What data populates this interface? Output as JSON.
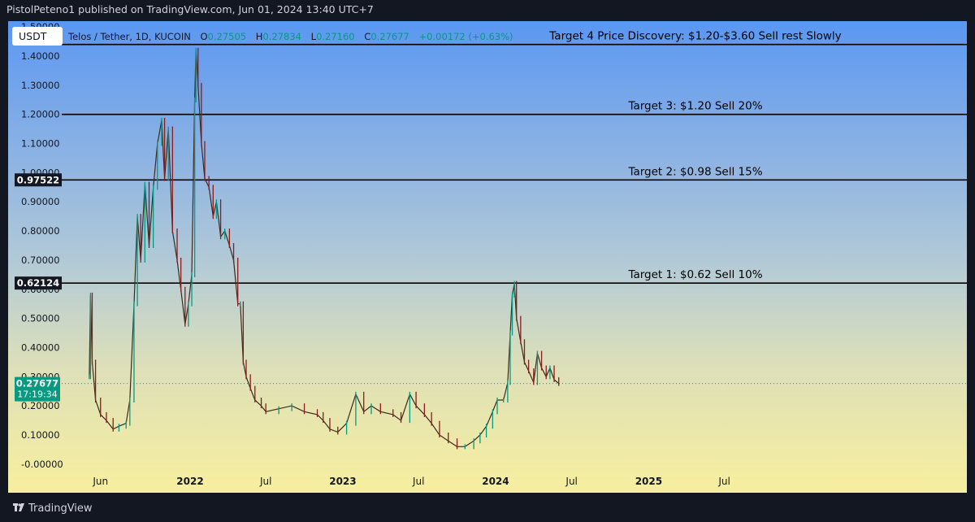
{
  "publisher_line": "PistolPeteno1 published on TradingView.com, Jun 01, 2024 13:40 UTC+7",
  "symbol_button": "USDT",
  "legend": {
    "title": "Telos / Tether, 1D, KUCOIN",
    "o_label": "O",
    "o": "0.27505",
    "h_label": "H",
    "h": "0.27834",
    "l_label": "L",
    "l": "0.27160",
    "c_label": "C",
    "c": "0.27677",
    "change": "+0.00172 (+0.63%)"
  },
  "footer": {
    "brand": "TradingView"
  },
  "colors": {
    "up": "#089981",
    "down": "#8a1c1c",
    "bg_top": "#5a97f2",
    "bg_bottom": "#f7ef9e",
    "price_badge": "#089981"
  },
  "chart_data": {
    "type": "line",
    "title": "Telos / Tether, 1D, KUCOIN",
    "xlabel": "",
    "ylabel": "",
    "ylim": [
      -0.02,
      1.52
    ],
    "y_ticks": [
      "1.50000",
      "1.40000",
      "1.30000",
      "1.20000",
      "1.10000",
      "1.00000",
      "0.90000",
      "0.80000",
      "0.70000",
      "0.60000",
      "0.50000",
      "0.40000",
      "0.30000",
      "0.20000",
      "0.10000",
      "-0.00000"
    ],
    "x_ticks": [
      {
        "label": "Jun",
        "date": "2021-06-01",
        "bold": false
      },
      {
        "label": "2022",
        "date": "2022-01-01",
        "bold": true
      },
      {
        "label": "Jul",
        "date": "2022-07-01",
        "bold": false
      },
      {
        "label": "2023",
        "date": "2023-01-01",
        "bold": true
      },
      {
        "label": "Jul",
        "date": "2023-07-01",
        "bold": false
      },
      {
        "label": "2024",
        "date": "2024-01-01",
        "bold": true
      },
      {
        "label": "Jul",
        "date": "2024-07-01",
        "bold": false
      },
      {
        "label": "2025",
        "date": "2025-01-01",
        "bold": true
      },
      {
        "label": "Jul",
        "date": "2025-07-01",
        "bold": false
      }
    ],
    "series": [
      {
        "points": [
          [
            "2021-05-05",
            0.3
          ],
          [
            "2021-05-08",
            0.58
          ],
          [
            "2021-05-12",
            0.35
          ],
          [
            "2021-05-20",
            0.22
          ],
          [
            "2021-06-01",
            0.17
          ],
          [
            "2021-06-15",
            0.15
          ],
          [
            "2021-07-01",
            0.12
          ],
          [
            "2021-07-15",
            0.13
          ],
          [
            "2021-08-01",
            0.14
          ],
          [
            "2021-08-10",
            0.22
          ],
          [
            "2021-08-20",
            0.55
          ],
          [
            "2021-08-28",
            0.85
          ],
          [
            "2021-09-05",
            0.7
          ],
          [
            "2021-09-15",
            0.96
          ],
          [
            "2021-09-25",
            0.75
          ],
          [
            "2021-10-05",
            0.95
          ],
          [
            "2021-10-15",
            1.1
          ],
          [
            "2021-10-25",
            1.18
          ],
          [
            "2021-11-01",
            0.98
          ],
          [
            "2021-11-10",
            1.15
          ],
          [
            "2021-11-20",
            0.8
          ],
          [
            "2021-12-01",
            0.7
          ],
          [
            "2021-12-10",
            0.6
          ],
          [
            "2021-12-20",
            0.48
          ],
          [
            "2021-12-28",
            0.55
          ],
          [
            "2022-01-05",
            0.65
          ],
          [
            "2022-01-12",
            1.25
          ],
          [
            "2022-01-15",
            1.42
          ],
          [
            "2022-01-20",
            1.3
          ],
          [
            "2022-01-28",
            1.1
          ],
          [
            "2022-02-05",
            0.98
          ],
          [
            "2022-02-15",
            0.95
          ],
          [
            "2022-02-25",
            0.85
          ],
          [
            "2022-03-05",
            0.9
          ],
          [
            "2022-03-15",
            0.78
          ],
          [
            "2022-03-25",
            0.8
          ],
          [
            "2022-04-05",
            0.75
          ],
          [
            "2022-04-15",
            0.7
          ],
          [
            "2022-04-25",
            0.55
          ],
          [
            "2022-05-01",
            0.55
          ],
          [
            "2022-05-08",
            0.35
          ],
          [
            "2022-05-15",
            0.3
          ],
          [
            "2022-05-25",
            0.26
          ],
          [
            "2022-06-05",
            0.22
          ],
          [
            "2022-06-20",
            0.2
          ],
          [
            "2022-07-01",
            0.18
          ],
          [
            "2022-08-01",
            0.19
          ],
          [
            "2022-09-01",
            0.2
          ],
          [
            "2022-10-01",
            0.18
          ],
          [
            "2022-11-01",
            0.17
          ],
          [
            "2022-11-15",
            0.15
          ],
          [
            "2022-12-01",
            0.12
          ],
          [
            "2022-12-20",
            0.11
          ],
          [
            "2023-01-10",
            0.14
          ],
          [
            "2023-02-01",
            0.24
          ],
          [
            "2023-02-20",
            0.18
          ],
          [
            "2023-03-10",
            0.2
          ],
          [
            "2023-04-01",
            0.18
          ],
          [
            "2023-05-01",
            0.17
          ],
          [
            "2023-05-20",
            0.15
          ],
          [
            "2023-06-10",
            0.24
          ],
          [
            "2023-06-25",
            0.2
          ],
          [
            "2023-07-15",
            0.17
          ],
          [
            "2023-08-01",
            0.14
          ],
          [
            "2023-08-20",
            0.1
          ],
          [
            "2023-09-10",
            0.08
          ],
          [
            "2023-10-01",
            0.06
          ],
          [
            "2023-10-20",
            0.06
          ],
          [
            "2023-11-10",
            0.08
          ],
          [
            "2023-11-25",
            0.1
          ],
          [
            "2023-12-10",
            0.13
          ],
          [
            "2023-12-25",
            0.18
          ],
          [
            "2024-01-05",
            0.22
          ],
          [
            "2024-01-20",
            0.22
          ],
          [
            "2024-01-30",
            0.28
          ],
          [
            "2024-02-05",
            0.45
          ],
          [
            "2024-02-10",
            0.58
          ],
          [
            "2024-02-15",
            0.62
          ],
          [
            "2024-02-20",
            0.5
          ],
          [
            "2024-03-01",
            0.42
          ],
          [
            "2024-03-10",
            0.35
          ],
          [
            "2024-03-20",
            0.32
          ],
          [
            "2024-04-01",
            0.28
          ],
          [
            "2024-04-10",
            0.38
          ],
          [
            "2024-04-20",
            0.33
          ],
          [
            "2024-05-01",
            0.3
          ],
          [
            "2024-05-10",
            0.33
          ],
          [
            "2024-05-20",
            0.29
          ],
          [
            "2024-05-31",
            0.27677
          ]
        ]
      }
    ],
    "horizontal_lines": [
      {
        "price": 1.44,
        "label": "Target 4 Price Discovery: $1.20-$3.60 Sell rest Slowly"
      },
      {
        "price": 1.2,
        "label": "Target 3: $1.20 Sell 20%"
      },
      {
        "price": 0.97522,
        "label": "Target 2: $0.98 Sell 15%",
        "badge": "0.97522"
      },
      {
        "price": 0.62124,
        "label": "Target 1: $0.62 Sell 10%",
        "badge": "0.62124"
      }
    ],
    "current_price": {
      "price": 0.27677,
      "label": "0.27677",
      "countdown": "17:19:34"
    },
    "grid": false,
    "legend_position": "top-left"
  }
}
